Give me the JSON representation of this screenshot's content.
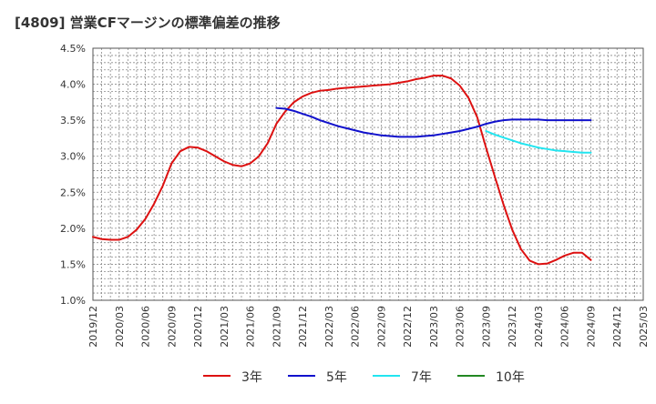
{
  "title": "[4809]  営業CFマージンの標準偏差の推移",
  "chart_data": {
    "type": "line",
    "title": "[4809]  営業CFマージンの標準偏差の推移",
    "xlabel": "",
    "ylabel": "",
    "y_tick_labels": [
      "1.0%",
      "1.5%",
      "2.0%",
      "2.5%",
      "3.0%",
      "3.5%",
      "4.0%",
      "4.5%"
    ],
    "y_ticks": [
      1.0,
      1.5,
      2.0,
      2.5,
      3.0,
      3.5,
      4.0,
      4.5
    ],
    "ylim": [
      1.0,
      4.5
    ],
    "x_tick_labels": [
      "2019/12",
      "2020/03",
      "2020/06",
      "2020/09",
      "2020/12",
      "2021/03",
      "2021/06",
      "2021/09",
      "2021/12",
      "2022/03",
      "2022/06",
      "2022/09",
      "2022/12",
      "2023/03",
      "2023/06",
      "2023/09",
      "2023/12",
      "2024/03",
      "2024/06",
      "2024/09",
      "2024/12",
      "2025/03"
    ],
    "grid": true,
    "legend_position": "bottom",
    "series": [
      {
        "name": "3年",
        "color": "#dd1111",
        "x": [
          "2019/12",
          "2020/01",
          "2020/02",
          "2020/03",
          "2020/04",
          "2020/05",
          "2020/06",
          "2020/07",
          "2020/08",
          "2020/09",
          "2020/10",
          "2020/11",
          "2020/12",
          "2021/01",
          "2021/02",
          "2021/03",
          "2021/04",
          "2021/05",
          "2021/06",
          "2021/07",
          "2021/08",
          "2021/09",
          "2021/10",
          "2021/11",
          "2021/12",
          "2022/01",
          "2022/02",
          "2022/03",
          "2022/04",
          "2022/05",
          "2022/06",
          "2022/07",
          "2022/08",
          "2022/09",
          "2022/10",
          "2022/11",
          "2022/12",
          "2023/01",
          "2023/02",
          "2023/03",
          "2023/04",
          "2023/05",
          "2023/06",
          "2023/07",
          "2023/08",
          "2023/09",
          "2023/10",
          "2023/11",
          "2023/12",
          "2024/01",
          "2024/02",
          "2024/03",
          "2024/04",
          "2024/05",
          "2024/06",
          "2024/07",
          "2024/08",
          "2024/09"
        ],
        "values": [
          1.88,
          1.85,
          1.84,
          1.84,
          1.88,
          1.98,
          2.13,
          2.34,
          2.59,
          2.9,
          3.07,
          3.13,
          3.12,
          3.07,
          3.0,
          2.93,
          2.88,
          2.86,
          2.9,
          3.0,
          3.18,
          3.45,
          3.62,
          3.75,
          3.83,
          3.88,
          3.91,
          3.92,
          3.94,
          3.95,
          3.96,
          3.97,
          3.98,
          3.99,
          4.0,
          4.02,
          4.04,
          4.07,
          4.09,
          4.12,
          4.12,
          4.08,
          3.98,
          3.81,
          3.54,
          3.12,
          2.72,
          2.33,
          1.98,
          1.71,
          1.55,
          1.5,
          1.51,
          1.56,
          1.62,
          1.66,
          1.66,
          1.56
        ]
      },
      {
        "name": "5年",
        "color": "#1111cc",
        "x": [
          "2021/09",
          "2021/10",
          "2021/11",
          "2021/12",
          "2022/01",
          "2022/02",
          "2022/03",
          "2022/04",
          "2022/05",
          "2022/06",
          "2022/07",
          "2022/08",
          "2022/09",
          "2022/10",
          "2022/11",
          "2022/12",
          "2023/01",
          "2023/02",
          "2023/03",
          "2023/04",
          "2023/05",
          "2023/06",
          "2023/07",
          "2023/08",
          "2023/09",
          "2023/10",
          "2023/11",
          "2023/12",
          "2024/01",
          "2024/02",
          "2024/03",
          "2024/04",
          "2024/05",
          "2024/06",
          "2024/07",
          "2024/08",
          "2024/09"
        ],
        "values": [
          3.67,
          3.66,
          3.63,
          3.59,
          3.55,
          3.5,
          3.46,
          3.42,
          3.39,
          3.36,
          3.33,
          3.31,
          3.29,
          3.28,
          3.27,
          3.27,
          3.27,
          3.28,
          3.29,
          3.31,
          3.33,
          3.35,
          3.38,
          3.41,
          3.45,
          3.48,
          3.5,
          3.51,
          3.51,
          3.51,
          3.51,
          3.5,
          3.5,
          3.5,
          3.5,
          3.5,
          3.5
        ]
      },
      {
        "name": "7年",
        "color": "#22e5f0",
        "x": [
          "2023/09",
          "2023/10",
          "2023/11",
          "2023/12",
          "2024/01",
          "2024/02",
          "2024/03",
          "2024/04",
          "2024/05",
          "2024/06",
          "2024/07",
          "2024/08",
          "2024/09"
        ],
        "values": [
          3.35,
          3.3,
          3.26,
          3.22,
          3.18,
          3.15,
          3.12,
          3.1,
          3.08,
          3.07,
          3.06,
          3.05,
          3.05
        ]
      },
      {
        "name": "10年",
        "color": "#228822",
        "x": [],
        "values": []
      }
    ]
  }
}
